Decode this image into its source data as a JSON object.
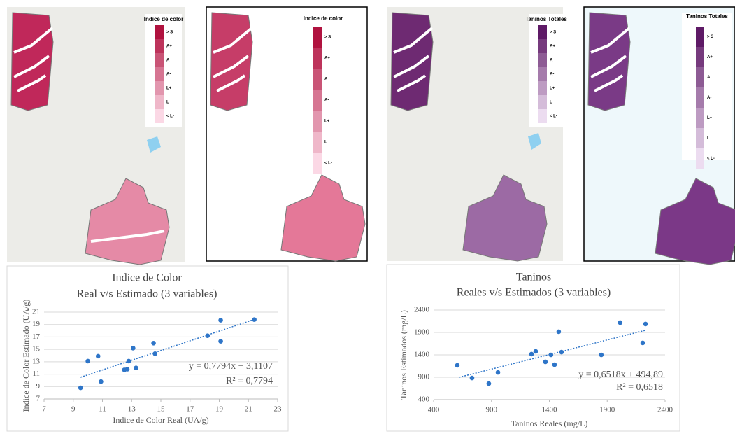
{
  "maps": [
    {
      "legend_title": "Indice de color",
      "legend_labels": [
        "> S",
        "A+",
        "A",
        "A-",
        "L+",
        "L",
        "< L-"
      ]
    },
    {
      "legend_title": "Indice de color",
      "legend_labels": [
        "> S",
        "A+",
        "A",
        "A-",
        "L+",
        "L",
        "< L-"
      ]
    },
    {
      "legend_title": "Taninos Totales",
      "legend_labels": [
        "> S",
        "A+",
        "A",
        "A-",
        "L+",
        "L",
        "< L-"
      ]
    },
    {
      "legend_title": "Taninos Totales",
      "legend_labels": [
        "> S",
        "A+",
        "A",
        "A-",
        "L+",
        "L",
        "< L-"
      ]
    }
  ],
  "chart_data": [
    {
      "type": "scatter",
      "title": "Indice de Color",
      "subtitle": "Real v/s Estimado (3 variables)",
      "x_label": "Indice de Color Real (UA/g)",
      "y_label": "Indice de Color Estimado (UA/g)",
      "x": [
        9.5,
        10.0,
        10.7,
        10.9,
        12.5,
        12.7,
        12.8,
        13.1,
        13.3,
        14.5,
        14.6,
        18.2,
        19.1,
        19.1,
        21.4
      ],
      "values": [
        8.8,
        13.1,
        13.9,
        9.8,
        11.7,
        11.8,
        13.1,
        15.2,
        12.0,
        16.0,
        14.3,
        17.2,
        19.7,
        16.3,
        19.8
      ],
      "color": "#2e75c8",
      "trendline": {
        "x": [
          9.5,
          21.5
        ],
        "values": [
          10.5,
          19.9
        ]
      },
      "annotations": [
        "y = 0,7794x + 3,1107",
        "R² = 0,7794"
      ],
      "xlim": [
        7,
        23
      ],
      "xticks": [
        7,
        9,
        11,
        13,
        15,
        17,
        19,
        21,
        23
      ],
      "ylim": [
        7,
        21
      ],
      "yticks": [
        7,
        9,
        11,
        13,
        15,
        17,
        19,
        21
      ],
      "grid": true
    },
    {
      "type": "scatter",
      "title": "Taninos",
      "subtitle": "Reales v/s Estimados (3 variables)",
      "x_label": "Taninos Reales (mg/L)",
      "y_label": "Taninos Estimados (mg/L)",
      "x": [
        605,
        732,
        877,
        956,
        1246,
        1282,
        1366,
        1414,
        1445,
        1481,
        1505,
        1849,
        2012,
        2207,
        2231
      ],
      "values": [
        1166,
        884,
        759,
        1009,
        1416,
        1478,
        1244,
        1400,
        1181,
        1916,
        1462,
        1400,
        2119,
        1666,
        2088
      ],
      "color": "#2e75c8",
      "trendline": {
        "x": [
          620,
          2230
        ],
        "values": [
          899,
          1948
        ]
      },
      "annotations": [
        "y = 0,6518x + 494,89",
        "R² = 0,6518"
      ],
      "xlim": [
        400,
        2400
      ],
      "xticks": [
        400,
        900,
        1400,
        1900,
        2400
      ],
      "ylim": [
        400,
        2400
      ],
      "yticks": [
        400,
        900,
        1400,
        1900,
        2400
      ],
      "grid": true
    }
  ]
}
